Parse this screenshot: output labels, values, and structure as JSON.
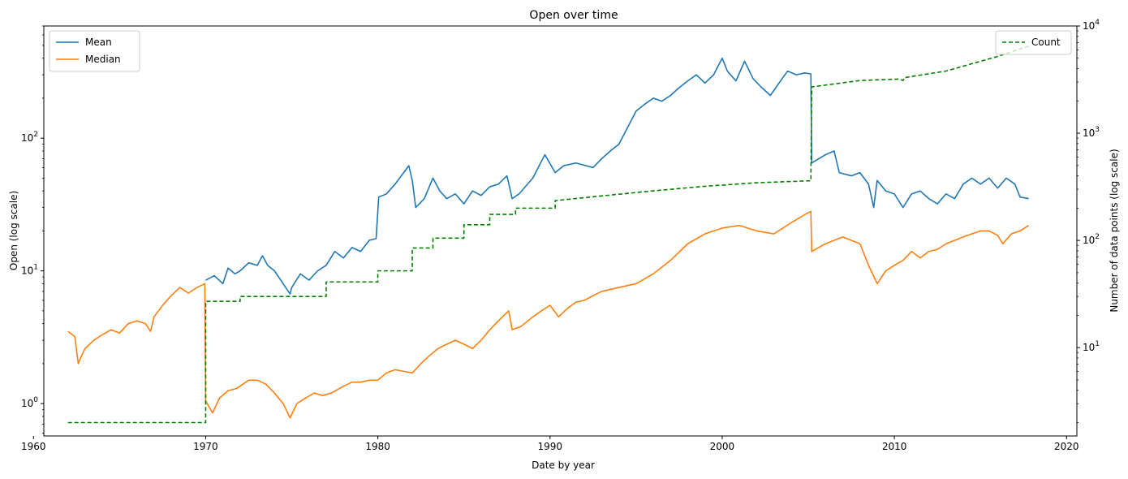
{
  "chart_data": {
    "type": "line",
    "title": "Open over time",
    "xlabel": "Date by year",
    "ylabel": "Open (log scale)",
    "y2label": "Number of data points (log scale)",
    "xlim": [
      1960.6,
      2020.6
    ],
    "ylim": [
      0.57,
      700
    ],
    "y2lim": [
      1.5,
      10000
    ],
    "yscale": "log",
    "y2scale": "log",
    "x_ticks": [
      1960,
      1970,
      1980,
      1990,
      2000,
      2010,
      2020
    ],
    "y_ticks": [
      {
        "value": 1,
        "base": "10",
        "exp": "0"
      },
      {
        "value": 10,
        "base": "10",
        "exp": "1"
      },
      {
        "value": 100,
        "base": "10",
        "exp": "2"
      }
    ],
    "y2_ticks": [
      {
        "value": 10,
        "base": "10",
        "exp": "1"
      },
      {
        "value": 100,
        "base": "10",
        "exp": "2"
      },
      {
        "value": 1000,
        "base": "10",
        "exp": "3"
      },
      {
        "value": 10000,
        "base": "10",
        "exp": "4"
      }
    ],
    "grid": false,
    "legend_left_placement": "upper-left",
    "legend_right_placement": "upper-right",
    "series": [
      {
        "name": "Mean",
        "axis": "left",
        "color": "#1f77b4",
        "style": "solid",
        "points": [
          [
            1970.0,
            8.5
          ],
          [
            1970.5,
            9.2
          ],
          [
            1971.0,
            8.0
          ],
          [
            1971.3,
            10.5
          ],
          [
            1971.7,
            9.5
          ],
          [
            1972.0,
            10.0
          ],
          [
            1972.5,
            11.5
          ],
          [
            1973.0,
            11.0
          ],
          [
            1973.3,
            13.0
          ],
          [
            1973.6,
            11.0
          ],
          [
            1974.0,
            10.0
          ],
          [
            1974.5,
            8.0
          ],
          [
            1974.9,
            6.7
          ],
          [
            1975.0,
            7.5
          ],
          [
            1975.5,
            9.5
          ],
          [
            1976.0,
            8.5
          ],
          [
            1976.5,
            10.0
          ],
          [
            1977.0,
            11.0
          ],
          [
            1977.5,
            14.0
          ],
          [
            1978.0,
            12.5
          ],
          [
            1978.5,
            15.0
          ],
          [
            1979.0,
            14.0
          ],
          [
            1979.5,
            17.0
          ],
          [
            1979.9,
            17.5
          ],
          [
            1980.05,
            36.0
          ],
          [
            1980.5,
            38.0
          ],
          [
            1981.0,
            45.0
          ],
          [
            1981.5,
            55.0
          ],
          [
            1981.8,
            62.0
          ],
          [
            1982.0,
            48.0
          ],
          [
            1982.2,
            30.0
          ],
          [
            1982.7,
            35.0
          ],
          [
            1983.2,
            50.0
          ],
          [
            1983.6,
            40.0
          ],
          [
            1984.0,
            35.0
          ],
          [
            1984.5,
            38.0
          ],
          [
            1985.0,
            32.0
          ],
          [
            1985.5,
            40.0
          ],
          [
            1986.0,
            37.0
          ],
          [
            1986.5,
            43.0
          ],
          [
            1987.0,
            45.0
          ],
          [
            1987.5,
            52.0
          ],
          [
            1987.8,
            35.0
          ],
          [
            1988.2,
            38.0
          ],
          [
            1989.0,
            50.0
          ],
          [
            1989.7,
            75.0
          ],
          [
            1990.3,
            55.0
          ],
          [
            1990.8,
            62.0
          ],
          [
            1991.5,
            65.0
          ],
          [
            1992.5,
            60.0
          ],
          [
            1993.0,
            70.0
          ],
          [
            1993.5,
            80.0
          ],
          [
            1994.0,
            90.0
          ],
          [
            1994.5,
            120.0
          ],
          [
            1995.0,
            160.0
          ],
          [
            1995.5,
            180.0
          ],
          [
            1996.0,
            200.0
          ],
          [
            1996.5,
            190.0
          ],
          [
            1997.0,
            210.0
          ],
          [
            1997.5,
            240.0
          ],
          [
            1998.0,
            270.0
          ],
          [
            1998.5,
            300.0
          ],
          [
            1999.0,
            260.0
          ],
          [
            1999.5,
            300.0
          ],
          [
            2000.0,
            400.0
          ],
          [
            2000.3,
            320.0
          ],
          [
            2000.8,
            270.0
          ],
          [
            2001.3,
            380.0
          ],
          [
            2001.8,
            280.0
          ],
          [
            2002.3,
            240.0
          ],
          [
            2002.8,
            210.0
          ],
          [
            2003.3,
            260.0
          ],
          [
            2003.8,
            320.0
          ],
          [
            2004.3,
            300.0
          ],
          [
            2004.8,
            310.0
          ],
          [
            2005.15,
            305.0
          ],
          [
            2005.2,
            65.0
          ],
          [
            2006.0,
            75.0
          ],
          [
            2006.5,
            80.0
          ],
          [
            2006.8,
            55.0
          ],
          [
            2007.5,
            52.0
          ],
          [
            2008.0,
            55.0
          ],
          [
            2008.5,
            45.0
          ],
          [
            2008.8,
            30.0
          ],
          [
            2009.0,
            48.0
          ],
          [
            2009.5,
            40.0
          ],
          [
            2010.0,
            38.0
          ],
          [
            2010.5,
            30.0
          ],
          [
            2011.0,
            38.0
          ],
          [
            2011.5,
            40.0
          ],
          [
            2012.0,
            35.0
          ],
          [
            2012.5,
            32.0
          ],
          [
            2013.0,
            38.0
          ],
          [
            2013.5,
            35.0
          ],
          [
            2014.0,
            45.0
          ],
          [
            2014.5,
            50.0
          ],
          [
            2015.0,
            45.0
          ],
          [
            2015.5,
            50.0
          ],
          [
            2016.0,
            42.0
          ],
          [
            2016.5,
            50.0
          ],
          [
            2017.0,
            45.0
          ],
          [
            2017.3,
            36.0
          ],
          [
            2017.8,
            35.0
          ]
        ]
      },
      {
        "name": "Median",
        "axis": "left",
        "color": "#ff7f0e",
        "style": "solid",
        "points": [
          [
            1962.0,
            3.5
          ],
          [
            1962.4,
            3.2
          ],
          [
            1962.6,
            2.0
          ],
          [
            1962.8,
            2.3
          ],
          [
            1963.0,
            2.6
          ],
          [
            1963.5,
            3.0
          ],
          [
            1964.0,
            3.3
          ],
          [
            1964.5,
            3.6
          ],
          [
            1965.0,
            3.4
          ],
          [
            1965.5,
            4.0
          ],
          [
            1966.0,
            4.2
          ],
          [
            1966.5,
            4.0
          ],
          [
            1966.8,
            3.5
          ],
          [
            1967.0,
            4.5
          ],
          [
            1967.5,
            5.5
          ],
          [
            1968.0,
            6.5
          ],
          [
            1968.5,
            7.5
          ],
          [
            1969.0,
            6.8
          ],
          [
            1969.5,
            7.5
          ],
          [
            1969.95,
            8.0
          ],
          [
            1970.0,
            1.05
          ],
          [
            1970.4,
            0.85
          ],
          [
            1970.8,
            1.1
          ],
          [
            1971.3,
            1.25
          ],
          [
            1971.8,
            1.3
          ],
          [
            1972.5,
            1.5
          ],
          [
            1973.0,
            1.5
          ],
          [
            1973.5,
            1.4
          ],
          [
            1974.0,
            1.2
          ],
          [
            1974.5,
            1.0
          ],
          [
            1974.9,
            0.78
          ],
          [
            1975.3,
            1.0
          ],
          [
            1975.8,
            1.1
          ],
          [
            1976.3,
            1.2
          ],
          [
            1976.8,
            1.15
          ],
          [
            1977.3,
            1.2
          ],
          [
            1978.0,
            1.35
          ],
          [
            1978.5,
            1.45
          ],
          [
            1979.0,
            1.45
          ],
          [
            1979.5,
            1.5
          ],
          [
            1980.0,
            1.5
          ],
          [
            1980.5,
            1.7
          ],
          [
            1981.0,
            1.8
          ],
          [
            1981.5,
            1.75
          ],
          [
            1982.0,
            1.7
          ],
          [
            1982.5,
            2.0
          ],
          [
            1983.0,
            2.3
          ],
          [
            1983.5,
            2.6
          ],
          [
            1984.0,
            2.8
          ],
          [
            1984.5,
            3.0
          ],
          [
            1985.0,
            2.8
          ],
          [
            1985.5,
            2.6
          ],
          [
            1986.0,
            3.0
          ],
          [
            1986.5,
            3.6
          ],
          [
            1987.0,
            4.2
          ],
          [
            1987.6,
            5.0
          ],
          [
            1987.8,
            3.6
          ],
          [
            1988.3,
            3.8
          ],
          [
            1989.0,
            4.5
          ],
          [
            1989.5,
            5.0
          ],
          [
            1990.0,
            5.5
          ],
          [
            1990.5,
            4.5
          ],
          [
            1991.0,
            5.2
          ],
          [
            1991.5,
            5.8
          ],
          [
            1992.0,
            6.0
          ],
          [
            1992.5,
            6.5
          ],
          [
            1993.0,
            7.0
          ],
          [
            1994.0,
            7.5
          ],
          [
            1995.0,
            8.0
          ],
          [
            1996.0,
            9.5
          ],
          [
            1997.0,
            12.0
          ],
          [
            1998.0,
            16.0
          ],
          [
            1999.0,
            19.0
          ],
          [
            2000.0,
            21.0
          ],
          [
            2001.0,
            22.0
          ],
          [
            2002.0,
            20.0
          ],
          [
            2003.0,
            19.0
          ],
          [
            2004.0,
            23.0
          ],
          [
            2004.9,
            27.0
          ],
          [
            2005.15,
            28.0
          ],
          [
            2005.2,
            14.0
          ],
          [
            2006.0,
            16.0
          ],
          [
            2007.0,
            18.0
          ],
          [
            2008.0,
            16.0
          ],
          [
            2008.5,
            11.0
          ],
          [
            2009.0,
            8.0
          ],
          [
            2009.5,
            10.0
          ],
          [
            2010.0,
            11.0
          ],
          [
            2010.5,
            12.0
          ],
          [
            2011.0,
            14.0
          ],
          [
            2011.5,
            12.5
          ],
          [
            2012.0,
            14.0
          ],
          [
            2012.5,
            14.5
          ],
          [
            2013.0,
            16.0
          ],
          [
            2013.5,
            17.0
          ],
          [
            2014.0,
            18.0
          ],
          [
            2014.5,
            19.0
          ],
          [
            2015.0,
            20.0
          ],
          [
            2015.5,
            20.0
          ],
          [
            2016.0,
            18.5
          ],
          [
            2016.3,
            16.0
          ],
          [
            2016.8,
            19.0
          ],
          [
            2017.3,
            20.0
          ],
          [
            2017.8,
            22.0
          ]
        ]
      },
      {
        "name": "Count",
        "axis": "right",
        "color": "#008000",
        "style": "dashed",
        "points": [
          [
            1962.0,
            2
          ],
          [
            1969.95,
            2
          ],
          [
            1970.0,
            2
          ],
          [
            1970.0,
            27
          ],
          [
            1972.0,
            27
          ],
          [
            1972.0,
            30
          ],
          [
            1977.0,
            30
          ],
          [
            1977.0,
            41
          ],
          [
            1980.0,
            41
          ],
          [
            1980.0,
            52
          ],
          [
            1982.0,
            52
          ],
          [
            1982.0,
            85
          ],
          [
            1983.2,
            85
          ],
          [
            1983.2,
            105
          ],
          [
            1985.0,
            105
          ],
          [
            1985.0,
            140
          ],
          [
            1986.5,
            140
          ],
          [
            1986.5,
            175
          ],
          [
            1988.0,
            175
          ],
          [
            1988.0,
            200
          ],
          [
            1990.3,
            200
          ],
          [
            1990.3,
            235
          ],
          [
            1993.0,
            260
          ],
          [
            1996.0,
            290
          ],
          [
            1999.0,
            320
          ],
          [
            2002.0,
            345
          ],
          [
            2005.15,
            360
          ],
          [
            2005.2,
            2700
          ],
          [
            2008.0,
            3100
          ],
          [
            2010.3,
            3200
          ],
          [
            2010.5,
            3100
          ],
          [
            2010.6,
            3300
          ],
          [
            2013.0,
            3800
          ],
          [
            2016.0,
            5200
          ],
          [
            2017.8,
            6500
          ]
        ]
      }
    ]
  }
}
